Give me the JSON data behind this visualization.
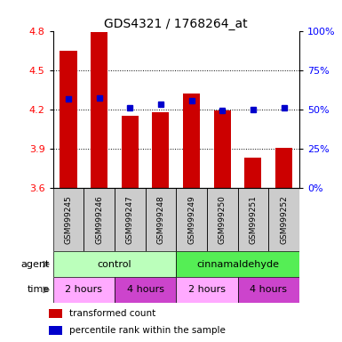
{
  "title": "GDS4321 / 1768264_at",
  "samples": [
    "GSM999245",
    "GSM999246",
    "GSM999247",
    "GSM999248",
    "GSM999249",
    "GSM999250",
    "GSM999251",
    "GSM999252"
  ],
  "bar_values": [
    4.65,
    4.79,
    4.15,
    4.18,
    4.32,
    4.19,
    3.83,
    3.91
  ],
  "percentile_values": [
    4.28,
    4.29,
    4.21,
    4.24,
    4.27,
    4.19,
    4.2,
    4.21
  ],
  "bar_bottom": 3.6,
  "ylim": [
    3.6,
    4.8
  ],
  "yticks_left": [
    3.6,
    3.9,
    4.2,
    4.5,
    4.8
  ],
  "yticks_right": [
    0,
    25,
    50,
    75,
    100
  ],
  "bar_color": "#cc0000",
  "percentile_color": "#0000cc",
  "sample_bg_color": "#cccccc",
  "agent_control_color": "#bbffbb",
  "agent_cinnam_color": "#55ee55",
  "time_colors": [
    "#ffaaff",
    "#cc44cc",
    "#ffaaff",
    "#cc44cc"
  ],
  "time_labels": [
    "2 hours",
    "4 hours",
    "2 hours",
    "4 hours"
  ],
  "agent_labels": [
    "control",
    "cinnamaldehyde"
  ],
  "dotted_lines": [
    3.9,
    4.2,
    4.5
  ]
}
